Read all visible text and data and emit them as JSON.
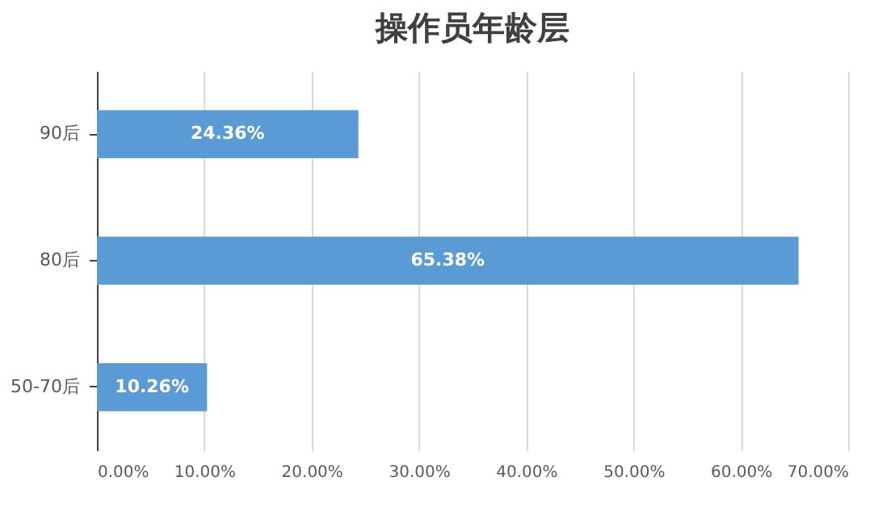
{
  "chart_data": {
    "type": "bar",
    "orientation": "horizontal",
    "title": "操作员年龄层",
    "categories": [
      "90后",
      "80后",
      "50-70后"
    ],
    "values": [
      24.36,
      65.38,
      10.26
    ],
    "value_labels": [
      "24.36%",
      "65.38%",
      "10.26%"
    ],
    "color": "#5b9bd5",
    "xlim": [
      0,
      70
    ],
    "xticks": [
      {
        "value": 0,
        "label": "0.00%"
      },
      {
        "value": 10,
        "label": "10.00%"
      },
      {
        "value": 20,
        "label": "20.00%"
      },
      {
        "value": 30,
        "label": "30.00%"
      },
      {
        "value": 40,
        "label": "40.00%"
      },
      {
        "value": 50,
        "label": "50.00%"
      },
      {
        "value": 60,
        "label": "60.00%"
      },
      {
        "value": 70,
        "label": "70.00%"
      }
    ],
    "grid": "x"
  }
}
